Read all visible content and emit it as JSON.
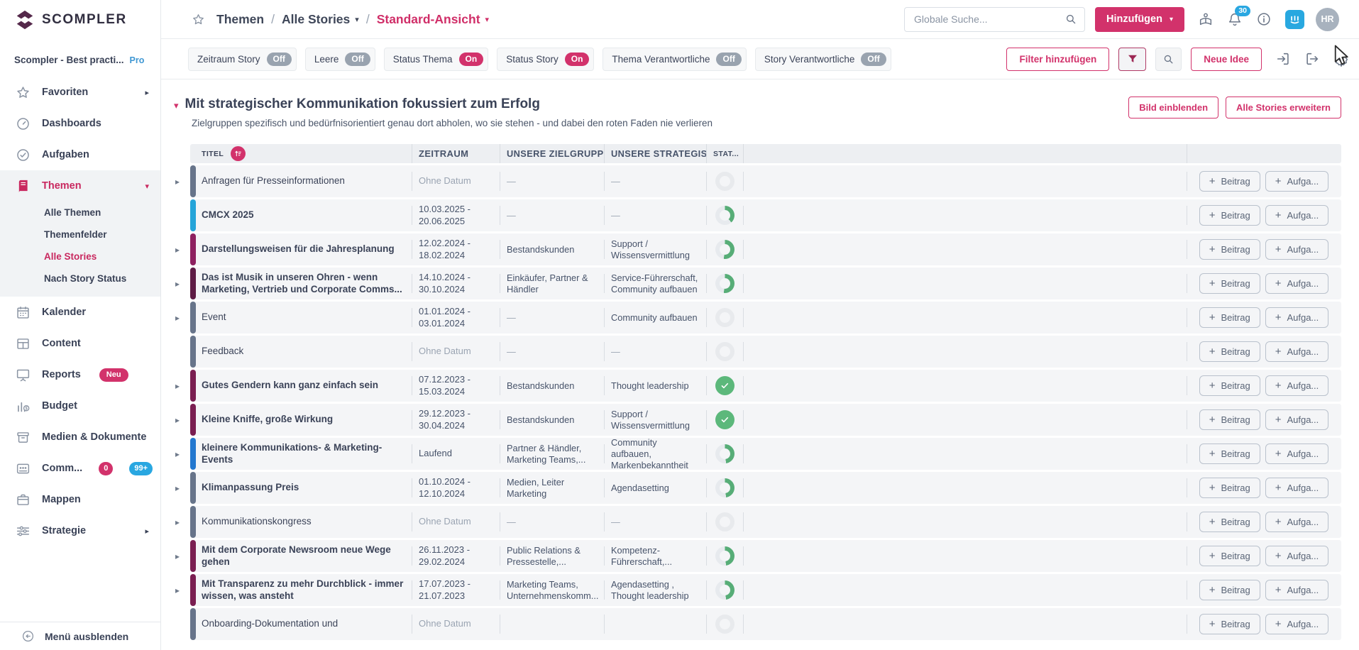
{
  "accent": "#d2326b",
  "sidebar": {
    "logo_text": "SCOMPLER",
    "workspace": {
      "name": "Scompler - Best practi...",
      "badge": "Pro"
    },
    "items": [
      {
        "label": "Favoriten",
        "icon": "star",
        "chevron": "right"
      },
      {
        "label": "Dashboards",
        "icon": "gauge"
      },
      {
        "label": "Aufgaben",
        "icon": "check-circle"
      },
      {
        "label": "Themen",
        "icon": "book",
        "active": true,
        "chevron": "down",
        "children": [
          "Alle Themen",
          "Themenfelder",
          "Alle Stories",
          "Nach Story Status"
        ],
        "active_child": "Alle Stories"
      },
      {
        "label": "Kalender",
        "icon": "calendar"
      },
      {
        "label": "Content",
        "icon": "grid"
      },
      {
        "label": "Reports",
        "icon": "screen",
        "badge": "Neu"
      },
      {
        "label": "Budget",
        "icon": "chart-coin"
      },
      {
        "label": "Medien & Dokumente",
        "icon": "archive"
      },
      {
        "label": "Comm...",
        "icon": "people",
        "badge_pink": "0",
        "badge_blue": "99+",
        "chevron": "right"
      },
      {
        "label": "Mappen",
        "icon": "briefcase"
      },
      {
        "label": "Strategie",
        "icon": "sliders",
        "chevron": "right"
      }
    ],
    "collapse_label": "Menü ausblenden"
  },
  "header": {
    "breadcrumb": [
      {
        "label": "Themen"
      },
      {
        "label": "Alle Stories",
        "dropdown": true
      },
      {
        "label": "Standard-Ansicht",
        "dropdown": true,
        "active": true
      }
    ],
    "search_placeholder": "Globale Suche...",
    "add_button": "Hinzufügen",
    "notification_count": "30",
    "avatar": "HR",
    "icons": [
      "tour-icon",
      "bell-icon",
      "info-icon",
      "intercom-icon"
    ]
  },
  "filterbar": {
    "toggles": [
      {
        "label": "Zeitraum Story",
        "state": "Off"
      },
      {
        "label": "Leere",
        "state": "Off"
      },
      {
        "label": "Status Thema",
        "state": "On"
      },
      {
        "label": "Status Story",
        "state": "On"
      },
      {
        "label": "Thema Verantwortliche",
        "state": "Off"
      },
      {
        "label": "Story Verantwortliche",
        "state": "Off"
      }
    ],
    "add_filter_label": "Filter hinzufügen",
    "new_idea_label": "Neue Idee"
  },
  "section": {
    "title": "Mit strategischer Kommunikation fokussiert zum Erfolg",
    "subtitle": "Zielgruppen spezifisch und bedürfnisorientiert genau dort abholen, wo sie stehen - und dabei den roten Faden nie verlieren",
    "show_image_label": "Bild einblenden",
    "expand_all_label": "Alle Stories erweitern"
  },
  "bar_colors": {
    "gray": "#67748a",
    "cyan": "#25a4d9",
    "purple": "#8e2160",
    "maroon": "#7a1e51",
    "maroon-dark": "#5e1b45",
    "blue": "#2277cf"
  },
  "status_colors": {
    "green": "#57ad77",
    "track": "#e7eaee"
  },
  "table": {
    "columns": [
      "TITEL",
      "ZEITRAUM",
      "UNSERE ZIELGRUPPEN",
      "UNSERE STRATEGISCHEN ...",
      "STAT..."
    ],
    "row_actions": [
      "Beitrag",
      "Aufga..."
    ],
    "rows": [
      {
        "title": "Anfragen für Presseinformationen",
        "bold": false,
        "bar": "gray",
        "arrow": true,
        "zeitraum": [
          "Ohne Datum"
        ],
        "date_muted": true,
        "ziel": "—",
        "strat": "—",
        "status": "empty"
      },
      {
        "title": "CMCX 2025",
        "bold": true,
        "bar": "cyan",
        "arrow": false,
        "zeitraum": [
          "10.03.2025 -",
          "20.06.2025"
        ],
        "ziel": "—",
        "strat": "—",
        "status": "progress",
        "pct": 38
      },
      {
        "title": "Darstellungsweisen für die Jahresplanung",
        "bold": true,
        "bar": "purple",
        "arrow": true,
        "zeitraum": [
          "12.02.2024 -",
          "18.02.2024"
        ],
        "ziel": "Bestandskunden",
        "strat": "Support / Wissensvermittlung",
        "status": "progress",
        "pct": 52
      },
      {
        "title": "Das ist Musik in unseren Ohren - wenn Marketing, Vertrieb und Corporate Comms...",
        "bold": true,
        "bar": "maroon-dark",
        "arrow": true,
        "zeitraum": [
          "14.10.2024 -",
          "30.10.2024"
        ],
        "ziel": "Einkäufer, Partner & Händler",
        "strat": "Service-Führerschaft, Community aufbauen",
        "status": "progress",
        "pct": 52
      },
      {
        "title": "Event",
        "bold": false,
        "bar": "gray",
        "arrow": true,
        "zeitraum": [
          "01.01.2024 -",
          "03.01.2024"
        ],
        "ziel": "—",
        "strat": "Community aufbauen",
        "status": "empty"
      },
      {
        "title": "Feedback",
        "bold": false,
        "bar": "gray",
        "arrow": false,
        "zeitraum": [
          "Ohne Datum"
        ],
        "date_muted": true,
        "ziel": "—",
        "strat": "—",
        "status": "empty"
      },
      {
        "title": "Gutes Gendern kann ganz einfach sein",
        "bold": true,
        "bar": "maroon",
        "arrow": true,
        "zeitraum": [
          "07.12.2023 -",
          "15.03.2024"
        ],
        "ziel": "Bestandskunden",
        "strat": "Thought leadership",
        "status": "done"
      },
      {
        "title": "Kleine Kniffe, große Wirkung",
        "bold": true,
        "bar": "maroon",
        "arrow": true,
        "zeitraum": [
          "29.12.2023 -",
          "30.04.2024"
        ],
        "ziel": "Bestandskunden",
        "strat": "Support / Wissensvermittlung",
        "status": "done"
      },
      {
        "title": "kleinere Kommunikations- & Marketing-Events",
        "bold": true,
        "bar": "blue",
        "arrow": true,
        "zeitraum": [
          "Laufend"
        ],
        "ziel": "Partner & Händler, Marketing Teams,...",
        "strat": "Community aufbauen, Markenbekanntheit",
        "status": "progress",
        "pct": 48
      },
      {
        "title": "Klimanpassung Preis",
        "bold": true,
        "bar": "gray",
        "arrow": true,
        "zeitraum": [
          "01.10.2024 -",
          "12.10.2024"
        ],
        "ziel": "Medien, Leiter Marketing",
        "strat": "Agendasetting",
        "status": "progress",
        "pct": 48
      },
      {
        "title": "Kommunikationskongress",
        "bold": false,
        "bar": "gray",
        "arrow": true,
        "zeitraum": [
          "Ohne Datum"
        ],
        "date_muted": true,
        "ziel": "—",
        "strat": "—",
        "status": "empty"
      },
      {
        "title": "Mit dem Corporate Newsroom neue Wege gehen",
        "bold": true,
        "bar": "maroon",
        "arrow": true,
        "zeitraum": [
          "26.11.2023 -",
          "29.02.2024"
        ],
        "ziel": "Public Relations & Pressestelle,...",
        "strat": "Kompetenz-Führerschaft,...",
        "status": "progress",
        "pct": 48
      },
      {
        "title": "Mit Transparenz zu mehr Durchblick - immer wissen, was ansteht",
        "bold": true,
        "bar": "maroon",
        "arrow": true,
        "zeitraum": [
          "17.07.2023 -",
          "21.07.2023"
        ],
        "ziel": "Marketing Teams, Unternehmenskomm...",
        "strat": "Agendasetting , Thought leadership",
        "status": "progress",
        "pct": 48
      },
      {
        "title": "Onboarding-Dokumentation und",
        "bold": false,
        "bar": "gray",
        "arrow": false,
        "zeitraum": [
          "Ohne Datum"
        ],
        "date_muted": true,
        "ziel": "",
        "strat": "",
        "status": "empty"
      }
    ]
  }
}
